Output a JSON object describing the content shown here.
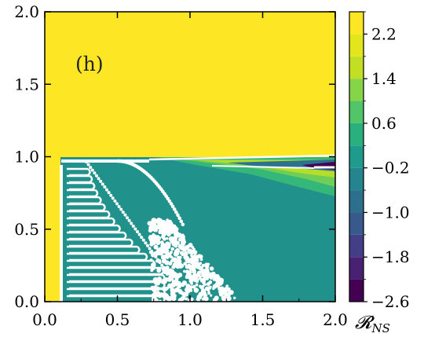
{
  "chart_data": {
    "type": "heatmap",
    "panel_label": "(h)",
    "xlim": [
      0.0,
      2.0
    ],
    "ylim": [
      0.0,
      2.0
    ],
    "x_ticks": [
      "0.0",
      "0.5",
      "1.0",
      "1.5",
      "2.0"
    ],
    "y_ticks": [
      "0.0",
      "0.5",
      "1.0",
      "1.5",
      "2.0"
    ],
    "colorbar": {
      "label": "𝓡",
      "label_sub": "NS",
      "range": [
        -2.6,
        2.6
      ],
      "ticks": [
        "2.2",
        "1.4",
        "0.6",
        "−0.2",
        "−1.0",
        "−1.8",
        "−2.6"
      ],
      "tick_values": [
        2.2,
        1.4,
        0.6,
        -0.2,
        -1.0,
        -1.8,
        -2.6
      ],
      "levels": 13,
      "colormap": "viridis"
    },
    "regions": [
      {
        "name": "upper region y > 1.0",
        "value": 2.4
      },
      {
        "name": "left strip x < 0.1",
        "value": 2.4
      },
      {
        "name": "lower region bulk",
        "value": 0.2
      },
      {
        "name": "narrow band near y = 1.0, x from 1.2 to 2.0",
        "value": -2.4
      }
    ],
    "colors": {
      "yellow": "#fde725",
      "teal": "#21918c",
      "dark_purple": "#440154",
      "white": "#ffffff"
    }
  }
}
